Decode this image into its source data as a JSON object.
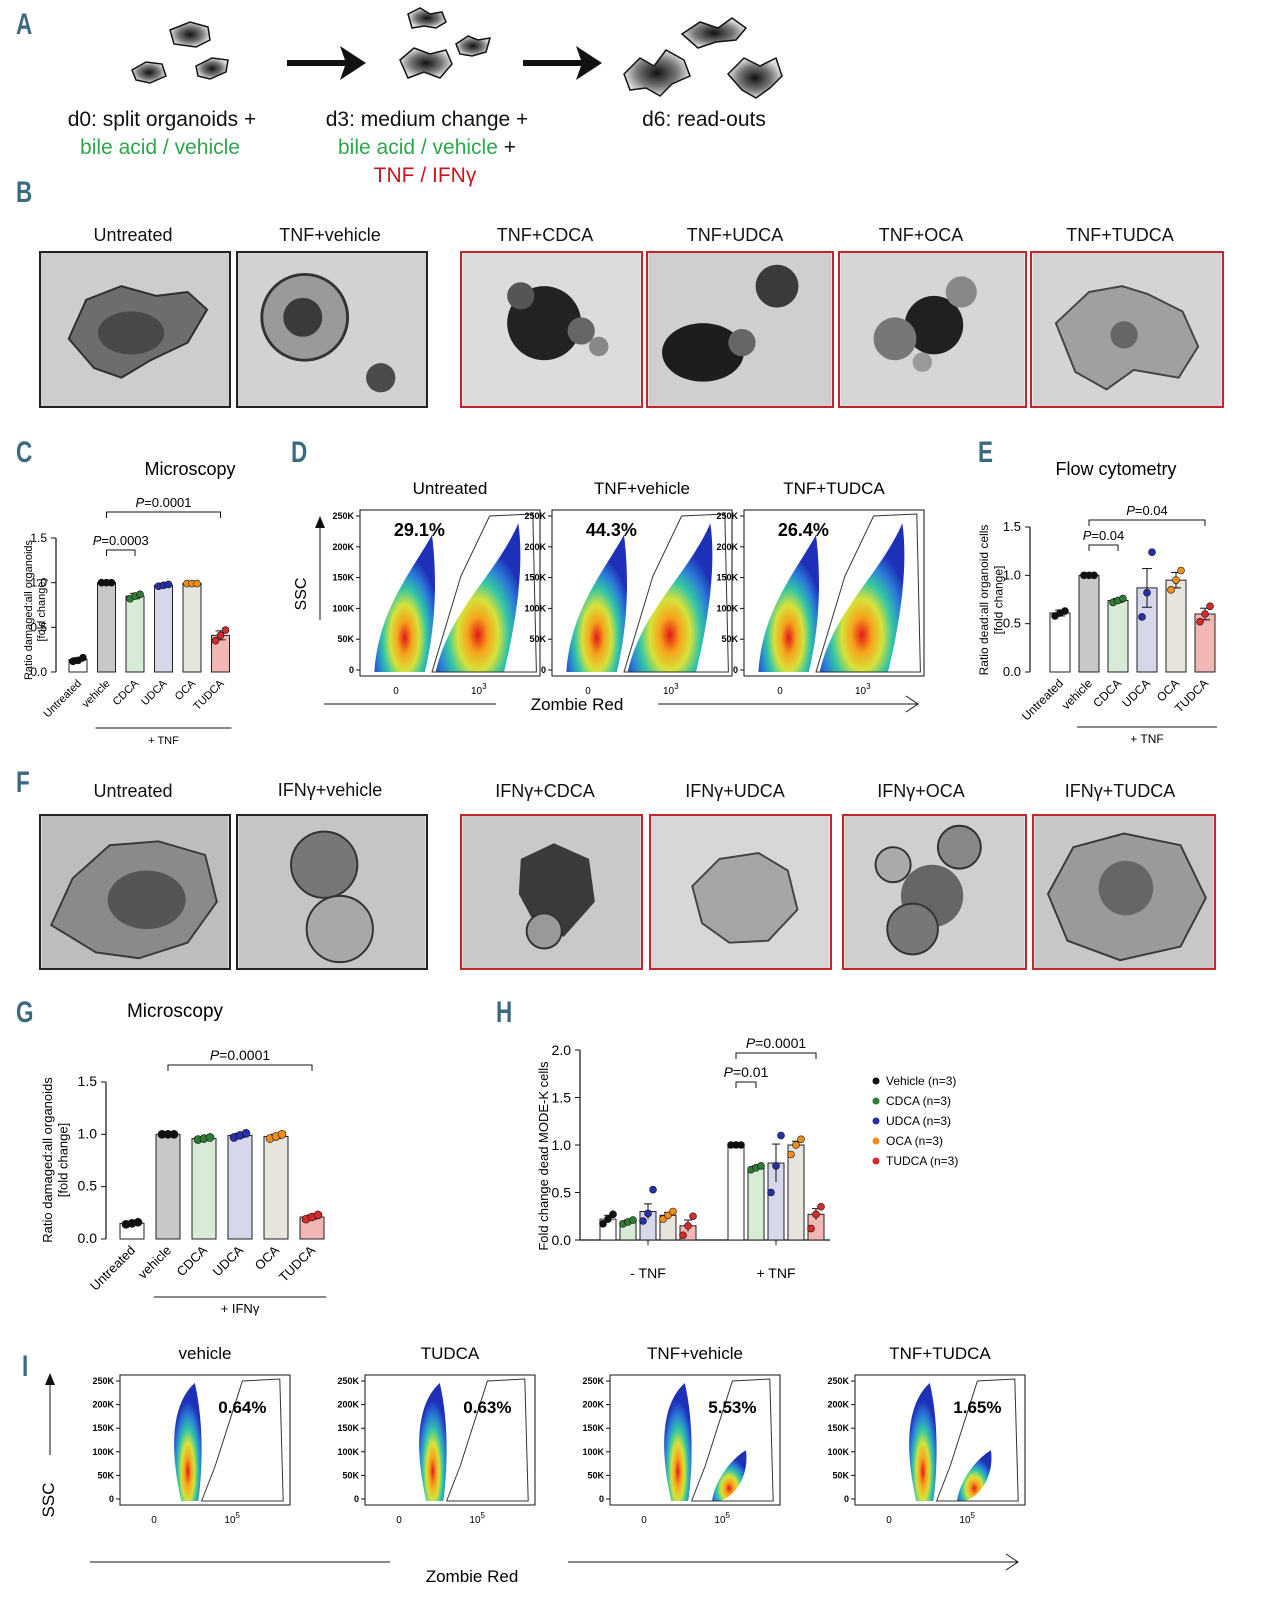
{
  "panels": {
    "A": "A",
    "B": "B",
    "C": "C",
    "D": "D",
    "E": "E",
    "F": "F",
    "G": "G",
    "H": "H",
    "I": "I"
  },
  "timeline": {
    "step1_line1": "d0: split organoids +",
    "step1_line2": "bile acid / vehicle",
    "step2_line1": "d3: medium change +",
    "step2_line2a": "bile acid / vehicle",
    "step2_line2b": " +",
    "step2_line3a": "TNF / ",
    "step2_line3b": " IFNγ",
    "step3": "d6: read-outs"
  },
  "colors": {
    "vehicle": "#c8c8c8",
    "cdca": "#d8ebd6",
    "udca": "#d7d7ec",
    "oca": "#e7e3dd",
    "tudca": "#f2b7b4",
    "untreated": "#ffffff",
    "dot_black": "#111111",
    "dot_green": "#2e7d32",
    "dot_blue": "#2630a8",
    "dot_orange": "#f28c1a",
    "dot_red": "#d42a2a",
    "frame_red": "#c0262b",
    "green_text": "#2aa84a",
    "red_text": "#c8161d"
  },
  "panelB": {
    "labels": [
      "Untreated",
      "TNF+vehicle",
      "TNF+CDCA",
      "TNF+UDCA",
      "TNF+OCA",
      "TNF+TUDCA"
    ]
  },
  "panelF": {
    "labels": [
      "Untreated",
      "IFNγ+vehicle",
      "IFNγ+CDCA",
      "IFNγ+UDCA",
      "IFNγ+OCA",
      "IFNγ+TUDCA"
    ]
  },
  "panelD": {
    "titles": [
      "Untreated",
      "TNF+vehicle",
      "TNF+TUDCA"
    ],
    "percents": [
      "29.1%",
      "44.3%",
      "26.4%"
    ],
    "yticks": [
      "250K",
      "200K",
      "150K",
      "100K",
      "50K",
      "0"
    ],
    "xtick0": "0",
    "xtick1": "10",
    "xtick1_sup": "3",
    "ylabel": "SSC",
    "xlabel": "Zombie Red"
  },
  "panelI": {
    "titles": [
      "vehicle",
      "TUDCA",
      "TNF+vehicle",
      "TNF+TUDCA"
    ],
    "percents": [
      "0.64%",
      "0.63%",
      "5.53%",
      "1.65%"
    ],
    "yticks": [
      "250K",
      "200K",
      "150K",
      "100K",
      "50K",
      "0"
    ],
    "xtick0": "0",
    "xtick1": "10",
    "xtick1_sup": "5",
    "ylabel": "SSC",
    "xlabel": "Zombie Red"
  },
  "chart_data": [
    {
      "id": "C",
      "type": "bar",
      "title": "Microscopy",
      "ylabel": "Ratio damaged:all organoids\n[fold change]",
      "categories": [
        "Untreated",
        "vehicle",
        "CDCA",
        "UDCA",
        "OCA",
        "TUDCA"
      ],
      "values": [
        0.14,
        1.0,
        0.85,
        0.97,
        0.99,
        0.41
      ],
      "errors": [
        0.02,
        0.0,
        0.03,
        0.01,
        0.0,
        0.05
      ],
      "points": [
        [
          0.12,
          0.13,
          0.16
        ],
        [
          1.0,
          1.0,
          1.0
        ],
        [
          0.82,
          0.85,
          0.87
        ],
        [
          0.96,
          0.97,
          0.98
        ],
        [
          0.99,
          0.99,
          0.99
        ],
        [
          0.35,
          0.41,
          0.47
        ]
      ],
      "ylim": [
        0,
        1.5
      ],
      "yticks": [
        "0.0",
        "0.5",
        "1.0",
        "1.5"
      ],
      "group_label": "+ TNF",
      "brackets": [
        {
          "from": 1,
          "to": 2,
          "p": "0.0003"
        },
        {
          "from": 1,
          "to": 5,
          "p": "0.0001"
        }
      ],
      "p_prefix": "P"
    },
    {
      "id": "E",
      "type": "bar",
      "title": "Flow cytometry",
      "ylabel": "Ratio dead:all organoid cells\n[fold change]",
      "categories": [
        "Untreated",
        "vehicle",
        "CDCA",
        "UDCA",
        "OCA",
        "TUDCA"
      ],
      "values": [
        0.61,
        1.0,
        0.74,
        0.87,
        0.95,
        0.6
      ],
      "errors": [
        0.03,
        0.0,
        0.02,
        0.2,
        0.08,
        0.06
      ],
      "points": [
        [
          0.58,
          0.61,
          0.63
        ],
        [
          1.0,
          1.0,
          1.0
        ],
        [
          0.72,
          0.74,
          0.76
        ],
        [
          0.57,
          0.82,
          1.24
        ],
        [
          0.85,
          0.95,
          1.05
        ],
        [
          0.52,
          0.6,
          0.68
        ]
      ],
      "ylim": [
        0,
        1.5
      ],
      "yticks": [
        "0.0",
        "0.5",
        "1.0",
        "1.5"
      ],
      "group_label": "+ TNF",
      "brackets": [
        {
          "from": 1,
          "to": 2,
          "p": "0.04"
        },
        {
          "from": 1,
          "to": 5,
          "p": "0.04"
        }
      ],
      "p_prefix": "P"
    },
    {
      "id": "G",
      "type": "bar",
      "title": "Microscopy",
      "ylabel": "Ratio damaged:all organoids\n[fold change]",
      "categories": [
        "Untreated",
        "vehicle",
        "CDCA",
        "UDCA",
        "OCA",
        "TUDCA"
      ],
      "values": [
        0.15,
        1.0,
        0.96,
        0.99,
        0.98,
        0.21
      ],
      "errors": [
        0.01,
        0.0,
        0.01,
        0.02,
        0.02,
        0.02
      ],
      "points": [
        [
          0.14,
          0.15,
          0.16
        ],
        [
          1.0,
          1.0,
          1.0
        ],
        [
          0.95,
          0.96,
          0.97
        ],
        [
          0.97,
          0.99,
          1.01
        ],
        [
          0.96,
          0.98,
          1.0
        ],
        [
          0.19,
          0.21,
          0.23
        ]
      ],
      "ylim": [
        0,
        1.5
      ],
      "yticks": [
        "0.0",
        "0.5",
        "1.0",
        "1.5"
      ],
      "group_label": "+ IFNγ",
      "brackets": [
        {
          "from": 1,
          "to": 5,
          "p": "0.0001"
        }
      ],
      "p_prefix": "P"
    },
    {
      "id": "H",
      "type": "bar",
      "ylabel": "Fold change dead MODE-K cells",
      "groups": [
        "- TNF",
        "+ TNF"
      ],
      "series": [
        {
          "name": "Vehicle (n=3)",
          "values": [
            0.22,
            1.0
          ],
          "errors": [
            0.04,
            0.0
          ],
          "points": [
            [
              0.17,
              0.22,
              0.27
            ],
            [
              1.0,
              1.0,
              1.0
            ]
          ]
        },
        {
          "name": "CDCA (n=3)",
          "values": [
            0.19,
            0.76
          ],
          "errors": [
            0.02,
            0.02
          ],
          "points": [
            [
              0.17,
              0.19,
              0.21
            ],
            [
              0.74,
              0.76,
              0.78
            ]
          ]
        },
        {
          "name": "UDCA (n=3)",
          "values": [
            0.3,
            0.81
          ],
          "errors": [
            0.08,
            0.2
          ],
          "points": [
            [
              0.2,
              0.28,
              0.53
            ],
            [
              0.5,
              0.78,
              1.1
            ]
          ]
        },
        {
          "name": "OCA (n=3)",
          "values": [
            0.26,
            1.0
          ],
          "errors": [
            0.03,
            0.04
          ],
          "points": [
            [
              0.22,
              0.26,
              0.3
            ],
            [
              0.9,
              1.0,
              1.06
            ]
          ]
        },
        {
          "name": "TUDCA (n=3)",
          "values": [
            0.15,
            0.27
          ],
          "errors": [
            0.06,
            0.06
          ],
          "points": [
            [
              0.05,
              0.15,
              0.25
            ],
            [
              0.12,
              0.27,
              0.35
            ]
          ]
        }
      ],
      "ylim": [
        0,
        2.0
      ],
      "yticks": [
        "0.0",
        "0.5",
        "1.0",
        "1.5",
        "2.0"
      ],
      "brackets": [
        {
          "group": 1,
          "from": 0,
          "to": 1,
          "p": "0.01"
        },
        {
          "group": 1,
          "from": 0,
          "to": 4,
          "p": "0.0001"
        }
      ],
      "p_prefix": "P",
      "legend_position": "right"
    }
  ]
}
